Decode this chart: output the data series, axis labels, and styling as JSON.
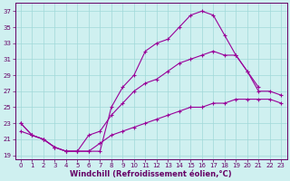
{
  "curves": [
    {
      "x": [
        0,
        1,
        2,
        3,
        4,
        5,
        6,
        7,
        8,
        9,
        10,
        11,
        12,
        13,
        14,
        15,
        16,
        17,
        18,
        19,
        20,
        21
      ],
      "y": [
        23,
        21.5,
        21,
        20,
        19.5,
        19.5,
        19.5,
        19.5,
        25,
        27.5,
        29,
        32,
        33,
        33.5,
        35,
        36.5,
        37,
        36.5,
        34,
        31.5,
        29.5,
        27.5
      ]
    },
    {
      "x": [
        0,
        1,
        2,
        3,
        4,
        5,
        6,
        7,
        8,
        9,
        10,
        11,
        12,
        13,
        14,
        15,
        16,
        17,
        18,
        19,
        20,
        21,
        22,
        23
      ],
      "y": [
        23,
        21.5,
        21,
        20,
        19.5,
        19.5,
        21.5,
        22,
        24,
        25.5,
        27,
        28,
        28.5,
        29.5,
        30.5,
        31,
        31.5,
        32,
        31.5,
        31.5,
        29.5,
        27,
        27,
        26.5
      ]
    },
    {
      "x": [
        0,
        1,
        2,
        3,
        4,
        5,
        6,
        7,
        8,
        9,
        10,
        11,
        12,
        13,
        14,
        15,
        16,
        17,
        18,
        19,
        20,
        21,
        22,
        23
      ],
      "y": [
        22,
        21.5,
        21,
        20,
        19.5,
        19.5,
        19.5,
        20.5,
        21.5,
        22,
        22.5,
        23,
        23.5,
        24,
        24.5,
        25,
        25,
        25.5,
        25.5,
        26,
        26,
        26,
        26,
        25.5
      ]
    }
  ],
  "line_color": "#990099",
  "marker": "+",
  "markersize": 3,
  "markeredgewidth": 0.8,
  "linewidth": 0.8,
  "xlim": [
    -0.5,
    23.5
  ],
  "ylim": [
    18.5,
    38
  ],
  "yticks": [
    19,
    21,
    23,
    25,
    27,
    29,
    31,
    33,
    35,
    37
  ],
  "xticks": [
    0,
    1,
    2,
    3,
    4,
    5,
    6,
    7,
    8,
    9,
    10,
    11,
    12,
    13,
    14,
    15,
    16,
    17,
    18,
    19,
    20,
    21,
    22,
    23
  ],
  "xlabel": "Windchill (Refroidissement éolien,°C)",
  "bg_color": "#cff0f0",
  "grid_color": "#a0d8d8",
  "axis_color": "#660066",
  "tick_label_color": "#660066",
  "xlabel_color": "#660066",
  "tick_fontsize": 5.0,
  "label_fontsize": 6.0
}
